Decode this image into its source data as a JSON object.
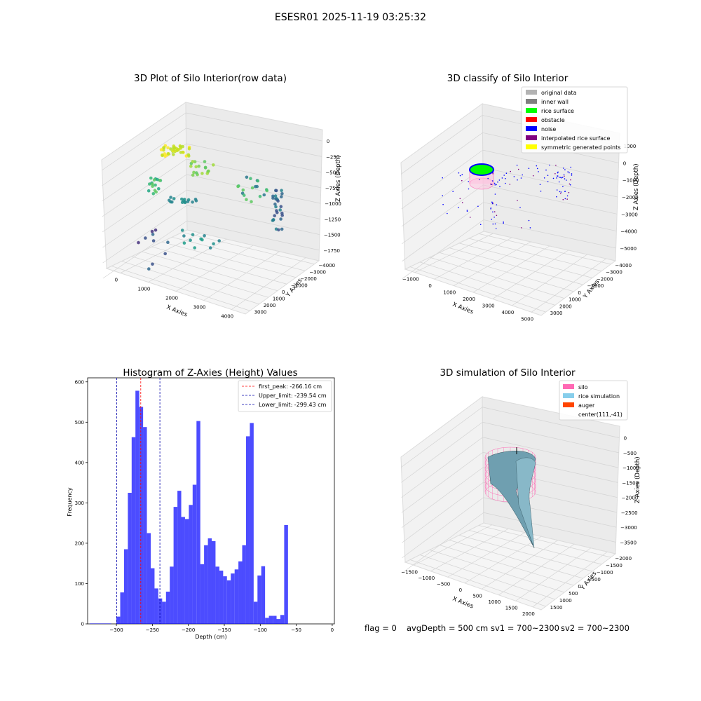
{
  "suptitle": "ESESR01 2025-11-19 03:25:32",
  "footer": {
    "flag": "flag = 0",
    "avg_depth": "avgDepth = 500 cm",
    "sv1": "sv1 = 700~2300",
    "sv2": "sv2 = 700~2300"
  },
  "chart_data": [
    {
      "type": "scatter",
      "title": "3D Plot of Silo Interior(row data)",
      "xlabel": "X Axies",
      "ylabel": "Y Axies",
      "zlabel": "Z Axies (Depth)",
      "xticks": [
        "0",
        "1000",
        "2000",
        "3000",
        "4000"
      ],
      "yticks": [
        "3000",
        "2000",
        "1000",
        "0",
        "−1000",
        "−2000",
        "−3000",
        "−4000"
      ],
      "zticks": [
        "0",
        "−250",
        "−500",
        "−750",
        "−1000",
        "−1250",
        "−1500",
        "−1750"
      ],
      "colormap": "viridis"
    },
    {
      "type": "scatter",
      "title": "3D classify of Silo Interior",
      "xlabel": "X Axies",
      "ylabel": "Y Axies",
      "zlabel": "Z Axies (Depth)",
      "xticks": [
        "−1000",
        "0",
        "1000",
        "2000",
        "3000",
        "4000",
        "5000"
      ],
      "yticks": [
        "3000",
        "2000",
        "1000",
        "0",
        "−1000",
        "−2000",
        "−3000",
        "−4000"
      ],
      "zticks": [
        "1000",
        "0",
        "−1000",
        "−2000",
        "−3000",
        "−4000",
        "−5000"
      ],
      "legend_position": "top-right",
      "legend": [
        {
          "label": "original data",
          "color": "#b3b3b3"
        },
        {
          "label": "inner wall",
          "color": "#808080"
        },
        {
          "label": "rice surface",
          "color": "#00ff00"
        },
        {
          "label": "obstacle",
          "color": "#ff0000"
        },
        {
          "label": "noise",
          "color": "#0000ff"
        },
        {
          "label": "interpolated rice surface",
          "color": "#800080"
        },
        {
          "label": "symmetric generated points",
          "color": "#ffff00"
        }
      ]
    },
    {
      "type": "bar",
      "title": "Histogram of Z-Axies (Height) Values",
      "xlabel": "Depth (cm)",
      "ylabel": "Frequency",
      "xlim": [
        -340,
        3
      ],
      "ylim": [
        0,
        610
      ],
      "xticks": [
        -300,
        -250,
        -200,
        -150,
        -100,
        -50,
        0
      ],
      "yticks": [
        0,
        100,
        200,
        300,
        400,
        500,
        600
      ],
      "bar_color": "#0000ff",
      "bin_width": 5.3,
      "bin_start": -300,
      "values": [
        18,
        78,
        185,
        325,
        463,
        578,
        538,
        488,
        225,
        138,
        88,
        63,
        55,
        80,
        142,
        290,
        330,
        265,
        260,
        295,
        345,
        503,
        148,
        195,
        212,
        205,
        142,
        132,
        118,
        108,
        125,
        135,
        155,
        195,
        465,
        498,
        55,
        120,
        143,
        15,
        20,
        20,
        12,
        22,
        245
      ],
      "lines": [
        {
          "label": "first_peak: -266.16 cm",
          "x": -266.16,
          "color": "#ff0000"
        },
        {
          "label": "Upper_limit: -239.54 cm",
          "x": -239.54,
          "color": "#0000aa"
        },
        {
          "label": "Lower_limit: -299.43 cm",
          "x": -299.43,
          "color": "#0000aa"
        }
      ],
      "legend_position": "top-right"
    },
    {
      "type": "surface",
      "title": "3D simulation of Silo Interior",
      "xlabel": "X Axies",
      "ylabel": "Y Axies",
      "zlabel": "Z Axies (Depth)",
      "xticks": [
        "−1500",
        "−1000",
        "−500",
        "0",
        "500",
        "1000",
        "1500",
        "2000"
      ],
      "yticks": [
        "1500",
        "1000",
        "500",
        "0",
        "−500",
        "−1000",
        "−1500",
        "−2000"
      ],
      "zticks": [
        "0",
        "−500",
        "−1000",
        "−1500",
        "−2000",
        "−2500",
        "−3000",
        "−3500"
      ],
      "legend_position": "top-right",
      "legend": [
        {
          "label": "silo",
          "color": "#ff69b4"
        },
        {
          "label": "rice simulation",
          "color": "#87ceeb"
        },
        {
          "label": "auger",
          "color": "#ff4500"
        },
        {
          "label": "center(111,-41)",
          "color": ""
        }
      ]
    }
  ]
}
